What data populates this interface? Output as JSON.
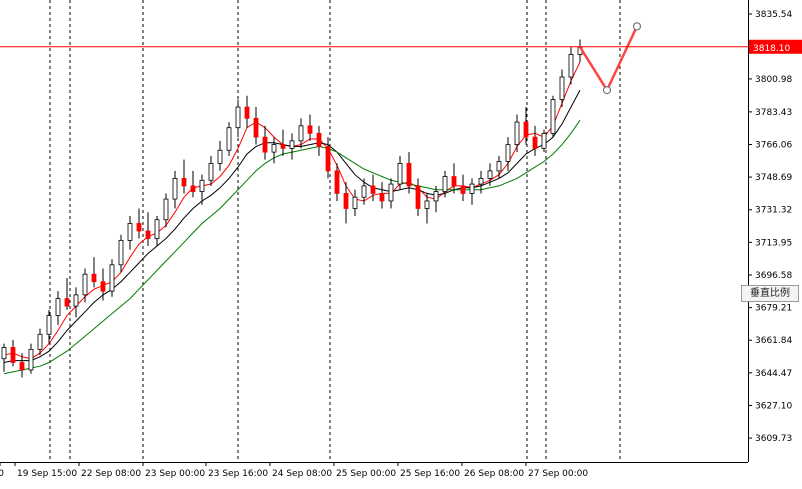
{
  "chart_data": {
    "type": "candlestick",
    "title": "",
    "xlabel": "",
    "ylabel": "",
    "ylim": [
      3597.0,
      3843.0
    ],
    "grid": false,
    "y_ticks": [
      3835.54,
      3800.98,
      3783.43,
      3766.06,
      3748.69,
      3731.32,
      3713.95,
      3696.58,
      3679.21,
      3661.84,
      3644.47,
      3627.1,
      3609.73
    ],
    "y_tick_labels": [
      "3835.54",
      "3800.98",
      "3783.43",
      "3766.06",
      "3748.69",
      "3731.32",
      "3713.95",
      "3696.58",
      "3679.21",
      "3661.84",
      "3644.47",
      "3627.10",
      "3609.73"
    ],
    "x_tick_labels": [
      "0",
      "19 Sep 15:00",
      "22 Sep 08:00",
      "23 Sep 00:00",
      "23 Sep 16:00",
      "24 Sep 08:00",
      "25 Sep 00:00",
      "25 Sep 16:00",
      "26 Sep 08:00",
      "27 Sep 00:00"
    ],
    "period_separators": [
      "19 Sep",
      "22 Sep",
      "23 Sep",
      "24 Sep",
      "25 Sep",
      "26 Sep",
      "27 Sep",
      "28 Sep"
    ],
    "current_price": 3818.1,
    "current_price_label": "3818.10",
    "series": [
      {
        "name": "",
        "kind": "candles",
        "points": [
          [
            3652,
            3660,
            3645,
            3658
          ],
          [
            3658,
            3662,
            3648,
            3650
          ],
          [
            3650,
            3655,
            3642,
            3646
          ],
          [
            3646,
            3660,
            3644,
            3657
          ],
          [
            3657,
            3668,
            3654,
            3665
          ],
          [
            3665,
            3678,
            3660,
            3675
          ],
          [
            3675,
            3688,
            3670,
            3684
          ],
          [
            3684,
            3695,
            3678,
            3680
          ],
          [
            3680,
            3690,
            3674,
            3686
          ],
          [
            3686,
            3700,
            3682,
            3697
          ],
          [
            3697,
            3706,
            3690,
            3693
          ],
          [
            3693,
            3700,
            3683,
            3688
          ],
          [
            3688,
            3705,
            3685,
            3702
          ],
          [
            3702,
            3718,
            3698,
            3715
          ],
          [
            3715,
            3728,
            3710,
            3724
          ],
          [
            3724,
            3732,
            3716,
            3720
          ],
          [
            3720,
            3730,
            3712,
            3716
          ],
          [
            3716,
            3728,
            3712,
            3726
          ],
          [
            3726,
            3740,
            3722,
            3737
          ],
          [
            3737,
            3752,
            3732,
            3748
          ],
          [
            3748,
            3758,
            3740,
            3744
          ],
          [
            3744,
            3752,
            3738,
            3741
          ],
          [
            3741,
            3750,
            3734,
            3747
          ],
          [
            3747,
            3760,
            3744,
            3756
          ],
          [
            3756,
            3768,
            3752,
            3763
          ],
          [
            3763,
            3778,
            3760,
            3775
          ],
          [
            3775,
            3790,
            3770,
            3786
          ],
          [
            3786,
            3792,
            3775,
            3780
          ],
          [
            3780,
            3786,
            3766,
            3770
          ],
          [
            3770,
            3776,
            3758,
            3762
          ],
          [
            3762,
            3770,
            3756,
            3766
          ],
          [
            3766,
            3774,
            3760,
            3764
          ],
          [
            3764,
            3772,
            3758,
            3768
          ],
          [
            3768,
            3780,
            3764,
            3776
          ],
          [
            3776,
            3782,
            3768,
            3772
          ],
          [
            3772,
            3776,
            3760,
            3765
          ],
          [
            3765,
            3770,
            3748,
            3752
          ],
          [
            3752,
            3756,
            3736,
            3740
          ],
          [
            3740,
            3746,
            3724,
            3732
          ],
          [
            3732,
            3742,
            3728,
            3738
          ],
          [
            3738,
            3748,
            3734,
            3744
          ],
          [
            3744,
            3750,
            3736,
            3740
          ],
          [
            3740,
            3746,
            3732,
            3736
          ],
          [
            3736,
            3748,
            3732,
            3745
          ],
          [
            3745,
            3760,
            3742,
            3756
          ],
          [
            3756,
            3762,
            3740,
            3744
          ],
          [
            3744,
            3748,
            3728,
            3732
          ],
          [
            3732,
            3740,
            3724,
            3736
          ],
          [
            3736,
            3744,
            3730,
            3741
          ],
          [
            3741,
            3752,
            3738,
            3749
          ],
          [
            3749,
            3756,
            3740,
            3744
          ],
          [
            3744,
            3750,
            3736,
            3740
          ],
          [
            3740,
            3748,
            3734,
            3745
          ],
          [
            3745,
            3752,
            3740,
            3748
          ],
          [
            3748,
            3756,
            3744,
            3752
          ],
          [
            3752,
            3760,
            3748,
            3757
          ],
          [
            3757,
            3770,
            3752,
            3766
          ],
          [
            3766,
            3782,
            3762,
            3778
          ],
          [
            3778,
            3786,
            3766,
            3770
          ],
          [
            3770,
            3776,
            3760,
            3764
          ],
          [
            3764,
            3774,
            3762,
            3772
          ],
          [
            3772,
            3792,
            3770,
            3790
          ],
          [
            3790,
            3806,
            3786,
            3802
          ],
          [
            3802,
            3818,
            3798,
            3814
          ],
          [
            3814,
            3822,
            3810,
            3818
          ]
        ]
      },
      {
        "name": "",
        "kind": "ma",
        "color": "#ff0000",
        "values": [
          3654,
          3655,
          3653,
          3652,
          3655,
          3660,
          3667,
          3675,
          3680,
          3685,
          3689,
          3691,
          3693,
          3698,
          3706,
          3713,
          3717,
          3719,
          3723,
          3730,
          3738,
          3743,
          3744,
          3745,
          3749,
          3755,
          3764,
          3775,
          3778,
          3775,
          3770,
          3766,
          3765,
          3766,
          3769,
          3769,
          3764,
          3755,
          3744,
          3737,
          3736,
          3739,
          3740,
          3740,
          3745,
          3746,
          3743,
          3738,
          3737,
          3741,
          3744,
          3744,
          3743,
          3745,
          3747,
          3750,
          3756,
          3765,
          3771,
          3772,
          3770,
          3776,
          3788,
          3800,
          3810
        ]
      },
      {
        "name": "",
        "kind": "ma",
        "color": "#000000",
        "values": [
          3650,
          3651,
          3651,
          3651,
          3653,
          3656,
          3661,
          3667,
          3672,
          3677,
          3682,
          3686,
          3689,
          3693,
          3698,
          3703,
          3708,
          3712,
          3716,
          3721,
          3727,
          3732,
          3736,
          3739,
          3743,
          3748,
          3754,
          3761,
          3765,
          3767,
          3767,
          3766,
          3765,
          3765,
          3766,
          3767,
          3766,
          3762,
          3756,
          3750,
          3746,
          3743,
          3742,
          3741,
          3742,
          3743,
          3742,
          3740,
          3739,
          3740,
          3742,
          3743,
          3743,
          3744,
          3746,
          3748,
          3751,
          3756,
          3761,
          3764,
          3766,
          3770,
          3777,
          3786,
          3795
        ]
      },
      {
        "name": "",
        "kind": "ma",
        "color": "#007a00",
        "values": [
          3644,
          3645,
          3646,
          3647,
          3648,
          3650,
          3653,
          3656,
          3660,
          3664,
          3668,
          3672,
          3676,
          3680,
          3684,
          3689,
          3694,
          3699,
          3704,
          3709,
          3714,
          3719,
          3724,
          3728,
          3732,
          3737,
          3742,
          3747,
          3752,
          3756,
          3759,
          3761,
          3762,
          3763,
          3764,
          3765,
          3764,
          3762,
          3759,
          3756,
          3753,
          3751,
          3749,
          3747,
          3746,
          3745,
          3744,
          3743,
          3742,
          3742,
          3742,
          3742,
          3742,
          3742,
          3743,
          3744,
          3746,
          3748,
          3751,
          3754,
          3757,
          3761,
          3766,
          3772,
          3779
        ]
      },
      {
        "name": "",
        "kind": "projection",
        "color": "#ff4444",
        "values": [
          3818,
          3795,
          3829
        ]
      }
    ]
  },
  "context_menu": {
    "vertical_scale_label": "垂直比例"
  }
}
